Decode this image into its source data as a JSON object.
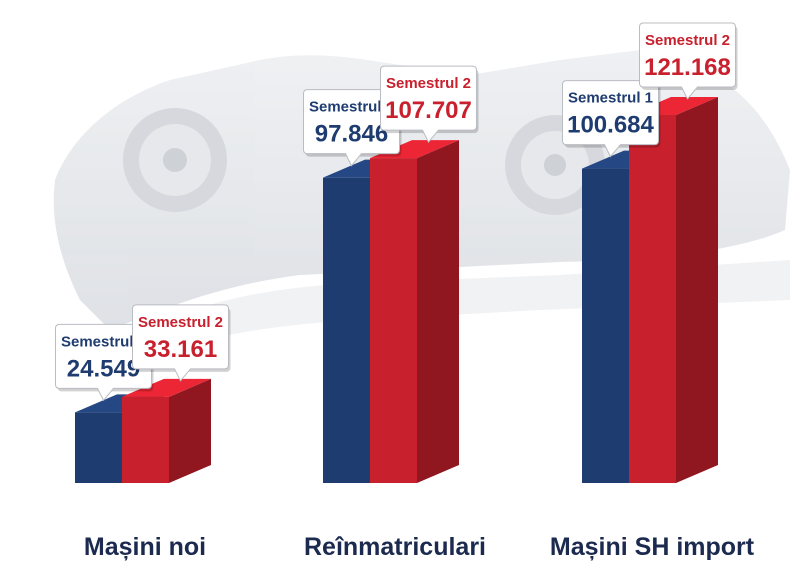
{
  "colors": {
    "semestrul1": "#1f3c70",
    "semestrul2": "#c8202d",
    "category_text": "#1b2a4e",
    "background_art": "#e6e8ec"
  },
  "chart_data": {
    "type": "bar",
    "categories": [
      "Mașini noi",
      "Reînmatriculari",
      "Mașini SH import"
    ],
    "series": [
      {
        "name": "Semestrul 1",
        "values": [
          24549,
          97846,
          100684
        ],
        "labels": [
          "24.549",
          "97.846",
          "100.684"
        ]
      },
      {
        "name": "Semestrul 2",
        "values": [
          33161,
          107707,
          121168
        ],
        "labels": [
          "33.161",
          "107.707",
          "121.168"
        ]
      }
    ],
    "title": "",
    "xlabel": "",
    "ylabel": "",
    "ylim": [
      0,
      121168
    ],
    "grid": false,
    "legend": "none",
    "style": "3d-bars-with-callouts",
    "background_image": "car-silhouette"
  }
}
